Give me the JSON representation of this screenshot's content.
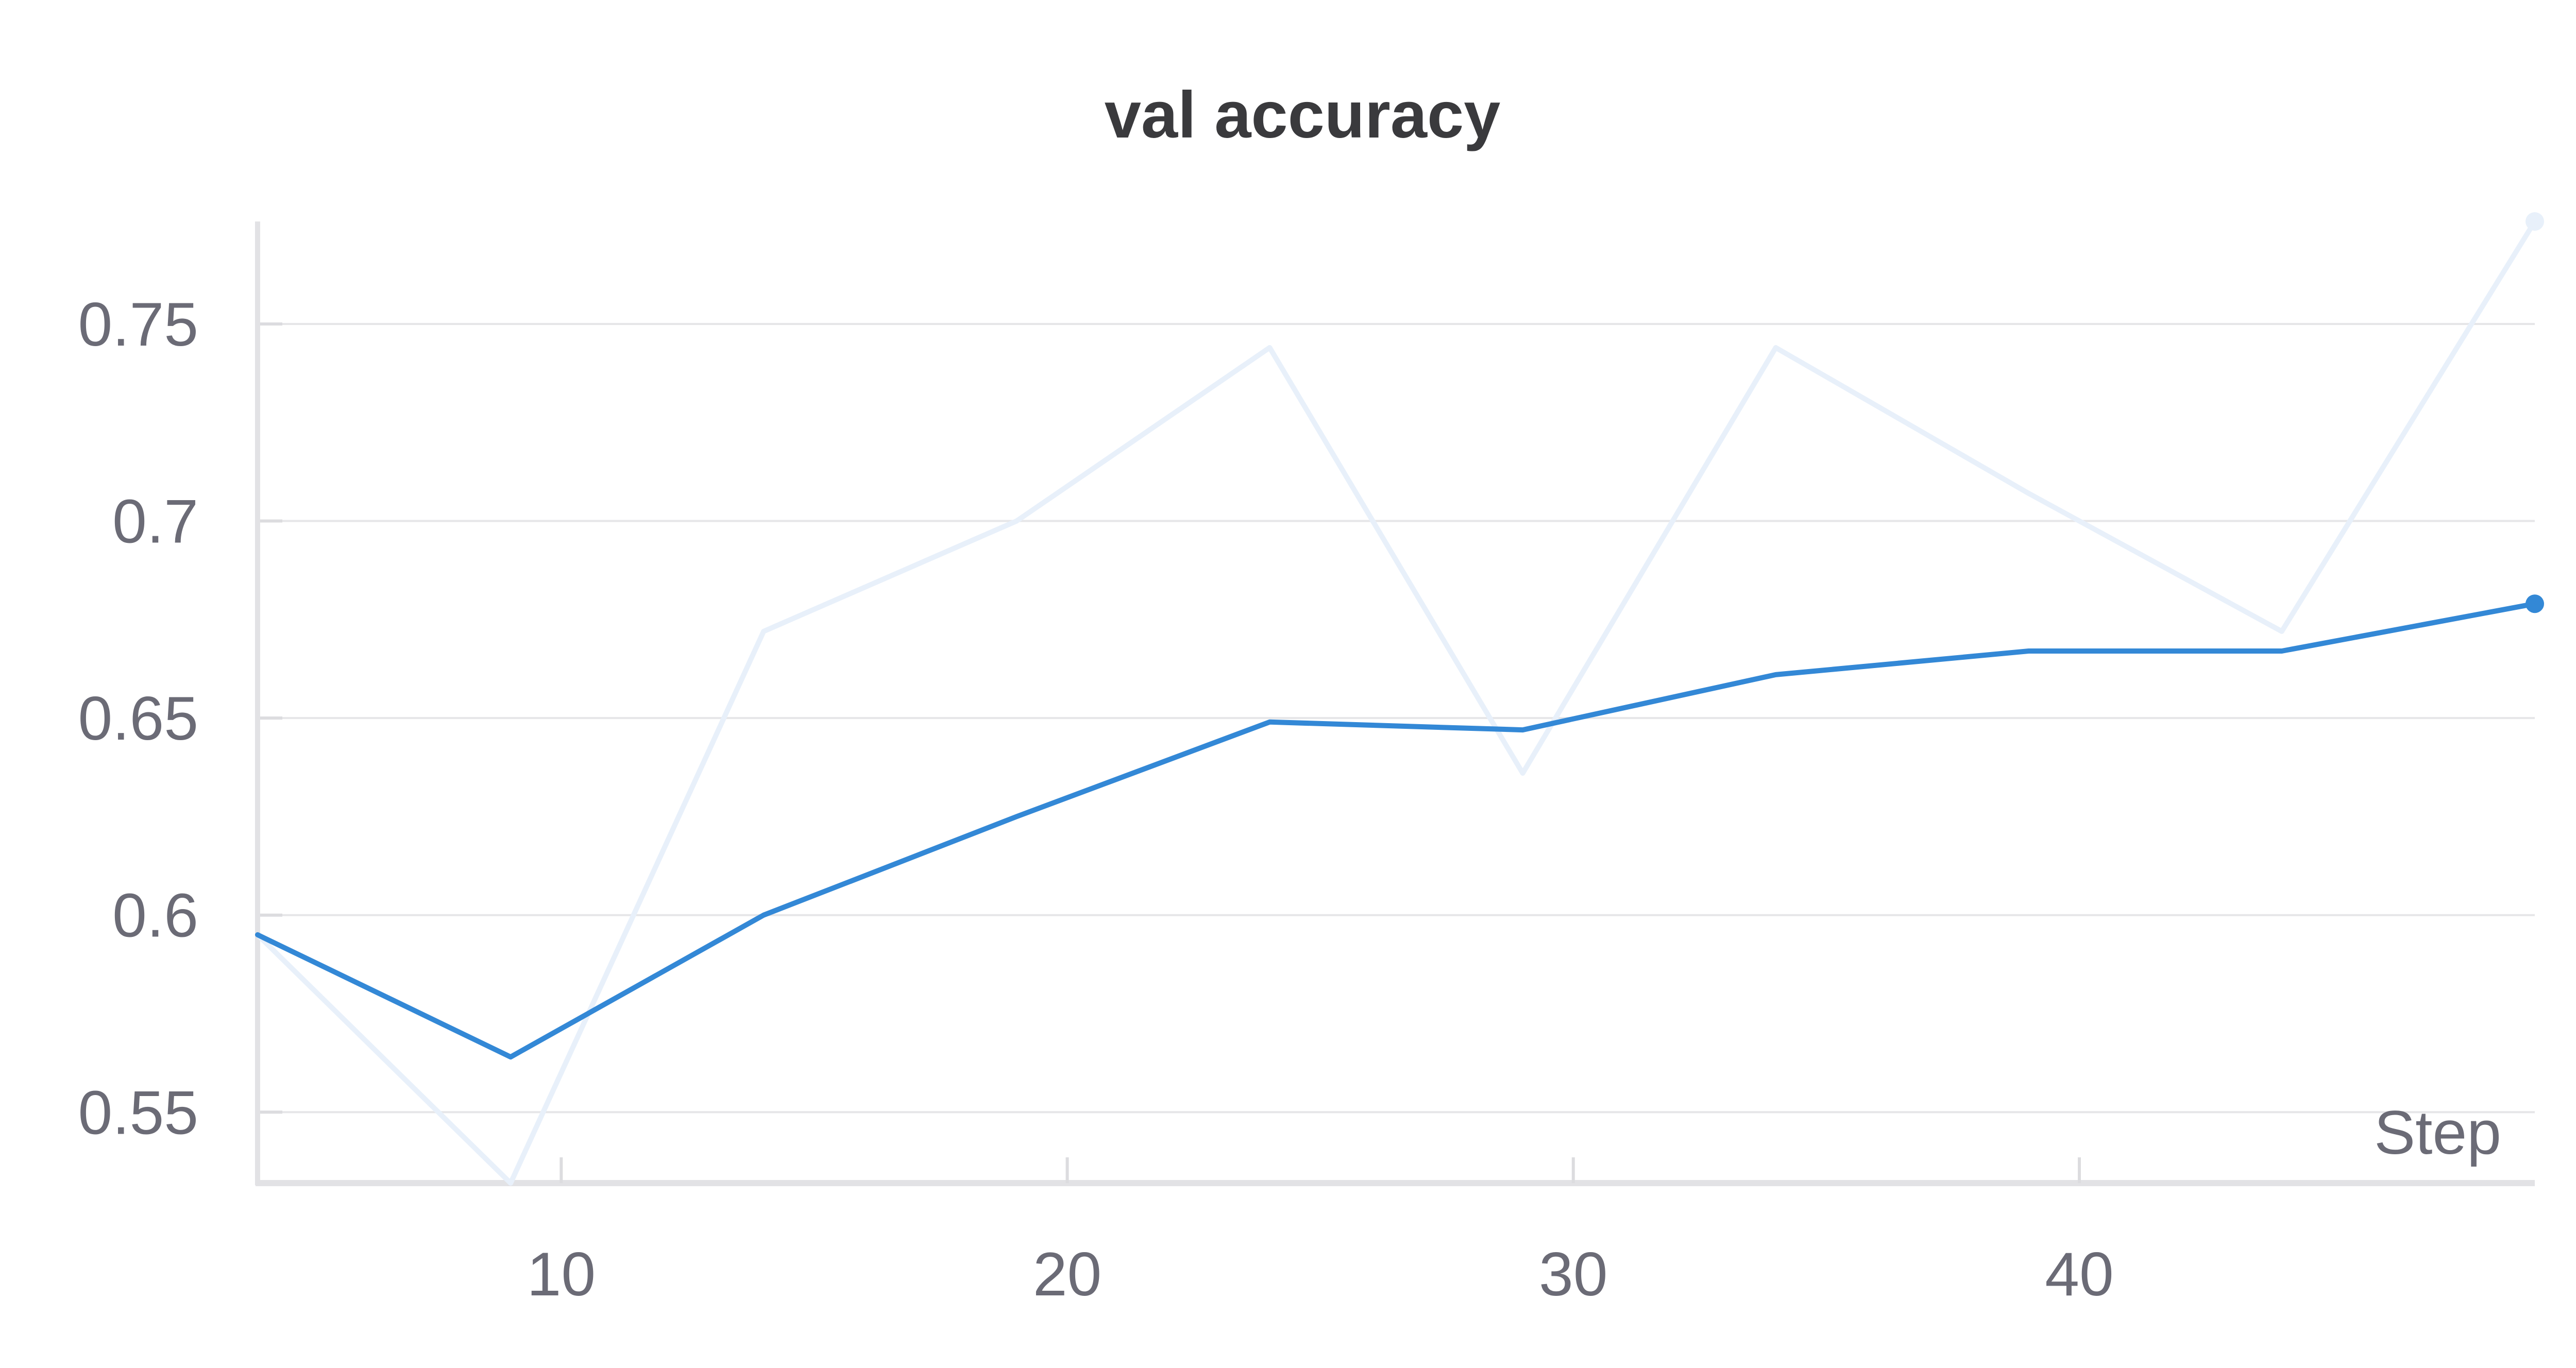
{
  "chart_data": {
    "type": "line",
    "title": "val accuracy",
    "xlabel": "Step",
    "ylabel": "",
    "xlim": [
      4,
      49
    ],
    "ylim": [
      0.532,
      0.776
    ],
    "x_ticks": [
      10,
      20,
      30,
      40
    ],
    "x_tick_labels": [
      "10",
      "20",
      "30",
      "40"
    ],
    "y_ticks": [
      0.55,
      0.6,
      0.65,
      0.7,
      0.75
    ],
    "y_tick_labels": [
      "0.55",
      "0.6",
      "0.65",
      "0.7",
      "0.75"
    ],
    "grid": true,
    "legend": "none",
    "series": [
      {
        "role": "raw",
        "color": "#e8f0fa",
        "x": [
          4,
          9,
          14,
          19,
          24,
          29,
          34,
          39,
          44,
          49
        ],
        "y": [
          0.595,
          0.532,
          0.672,
          0.7,
          0.744,
          0.636,
          0.744,
          0.707,
          0.672,
          0.776
        ]
      },
      {
        "role": "smoothed",
        "color": "#3388d6",
        "x": [
          4,
          9,
          14,
          19,
          24,
          29,
          34,
          39,
          44,
          49
        ],
        "y": [
          0.595,
          0.564,
          0.6,
          0.625,
          0.649,
          0.647,
          0.661,
          0.667,
          0.667,
          0.679
        ]
      }
    ]
  }
}
